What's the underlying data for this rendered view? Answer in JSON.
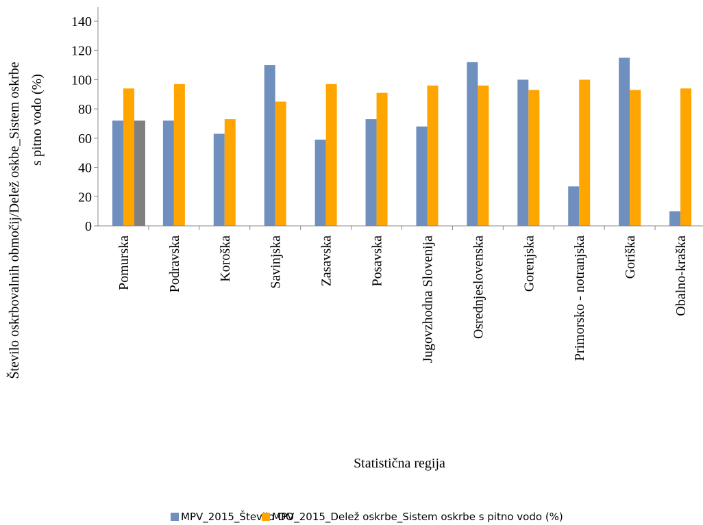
{
  "chart_data": {
    "type": "bar",
    "categories": [
      "Pomurska",
      "Podravska",
      "Koroška",
      "Savinjska",
      "Zasavska",
      "Posavska",
      "Jugovzhodna Slovenija",
      "Osrednjeslovenska",
      "Gorenjska",
      "Primorsko - notranjska",
      "Goriška",
      "Obalno-kraška"
    ],
    "series": [
      {
        "name": "MPV_2015_Število OO",
        "color": "#6f8fbf",
        "values": [
          72,
          72,
          63,
          110,
          59,
          73,
          68,
          112,
          100,
          27,
          115,
          10
        ]
      },
      {
        "name": "MPV_2015_Delež oskrbe_Sistem oskrbe s pitno vodo (%)",
        "color": "#ffa500",
        "values": [
          94,
          97,
          73,
          85,
          97,
          91,
          96,
          96,
          93,
          100,
          93,
          94
        ]
      },
      {
        "name": "",
        "color": "#808080",
        "values": [
          72,
          null,
          null,
          null,
          null,
          null,
          null,
          null,
          null,
          null,
          null,
          null
        ]
      }
    ],
    "yticks": [
      0,
      20,
      40,
      60,
      80,
      100,
      120,
      140
    ],
    "ylim": [
      0,
      145
    ],
    "xlabel": "Statistična regija",
    "ylabel_line1": "Število oskrbovalnih območij/Delež oskbe_Sistem oskrbe",
    "ylabel_line2": "s pitno vodo (%)",
    "grid": false,
    "legend_position": "bottom"
  }
}
